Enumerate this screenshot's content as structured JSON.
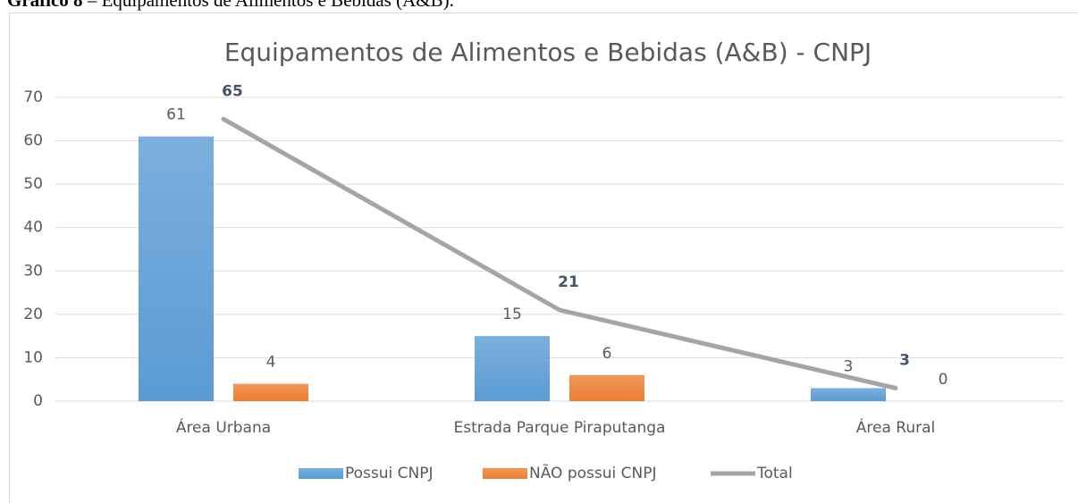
{
  "caption": {
    "label": "Gráfico 8",
    "text": "– Equipamentos de Alimentos e Bebidas (A&B)."
  },
  "chart_data": {
    "type": "bar",
    "title": "Equipamentos de Alimentos e Bebidas (A&B) - CNPJ",
    "categories": [
      "Área Urbana",
      "Estrada Parque Piraputanga",
      "Área Rural"
    ],
    "series": [
      {
        "name": "Possui CNPJ",
        "color": "#5b9bd5",
        "values": [
          61,
          15,
          3
        ]
      },
      {
        "name": "NÃO possui CNPJ",
        "color": "#ed7d31",
        "values": [
          4,
          6,
          0
        ]
      },
      {
        "name": "Total",
        "type": "line",
        "color": "#a5a5a5",
        "values": [
          65,
          21,
          3
        ]
      }
    ],
    "ylim": [
      0,
      70
    ],
    "yticks": [
      0,
      10,
      20,
      30,
      40,
      50,
      60,
      70
    ],
    "grid": true,
    "legend": "bottom"
  }
}
